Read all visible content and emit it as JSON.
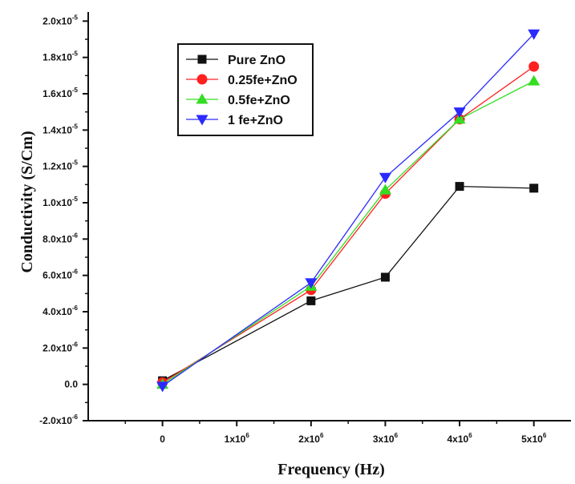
{
  "chart_data": {
    "type": "line",
    "xlabel": "Frequency (Hz)",
    "ylabel": "Conductivity (S/Cm)",
    "x_tick_labels": [
      {
        "value": 0,
        "mantissa": "0",
        "exp": ""
      },
      {
        "value": 1,
        "mantissa": "1x10",
        "exp": "6"
      },
      {
        "value": 2,
        "mantissa": "2x10",
        "exp": "6"
      },
      {
        "value": 3,
        "mantissa": "3x10",
        "exp": "6"
      },
      {
        "value": 4,
        "mantissa": "4x10",
        "exp": "6"
      },
      {
        "value": 5,
        "mantissa": "5x10",
        "exp": "6"
      }
    ],
    "y_tick_labels": [
      {
        "value": -2.0,
        "mantissa": "-2.0x10",
        "exp": "-6"
      },
      {
        "value": 0.0,
        "mantissa": "0.0",
        "exp": ""
      },
      {
        "value": 2.0,
        "mantissa": "2.0x10",
        "exp": "-6"
      },
      {
        "value": 4.0,
        "mantissa": "4.0x10",
        "exp": "-6"
      },
      {
        "value": 6.0,
        "mantissa": "6.0x10",
        "exp": "-6"
      },
      {
        "value": 8.0,
        "mantissa": "8.0x10",
        "exp": "-6"
      },
      {
        "value": 10.0,
        "mantissa": "1.0x10",
        "exp": "-5"
      },
      {
        "value": 12.0,
        "mantissa": "1.2x10",
        "exp": "-5"
      },
      {
        "value": 14.0,
        "mantissa": "1.4x10",
        "exp": "-5"
      },
      {
        "value": 16.0,
        "mantissa": "1.6x10",
        "exp": "-5"
      },
      {
        "value": 18.0,
        "mantissa": "1.8x10",
        "exp": "-5"
      },
      {
        "value": 20.0,
        "mantissa": "2.0x10",
        "exp": "-5"
      }
    ],
    "x_scale_note": "x values in units of 10^6 Hz",
    "y_scale_note": "y values in units of 10^-6 S/Cm",
    "xlim": [
      -1,
      5.5
    ],
    "ylim": [
      -2,
      20.5
    ],
    "grid": false,
    "legend_position": "top-left",
    "series": [
      {
        "name": "Pure ZnO",
        "color": "#111111",
        "marker": "square",
        "x": [
          0,
          2,
          3,
          4,
          5
        ],
        "y": [
          0.2,
          4.6,
          5.9,
          10.9,
          10.8
        ]
      },
      {
        "name": "0.25fe+ZnO",
        "color": "#ff2020",
        "marker": "circle",
        "x": [
          0,
          2,
          3,
          4,
          5
        ],
        "y": [
          0.1,
          5.2,
          10.5,
          14.6,
          17.5
        ]
      },
      {
        "name": "0.5fe+ZnO",
        "color": "#33dd22",
        "marker": "triangle-up",
        "x": [
          0,
          2,
          3,
          4,
          5
        ],
        "y": [
          0.0,
          5.4,
          10.7,
          14.6,
          16.7
        ]
      },
      {
        "name": "1 fe+ZnO",
        "color": "#2a2aff",
        "marker": "triangle-down",
        "x": [
          0,
          2,
          3,
          4,
          5
        ],
        "y": [
          -0.1,
          5.6,
          11.4,
          15.0,
          19.3
        ]
      }
    ]
  }
}
